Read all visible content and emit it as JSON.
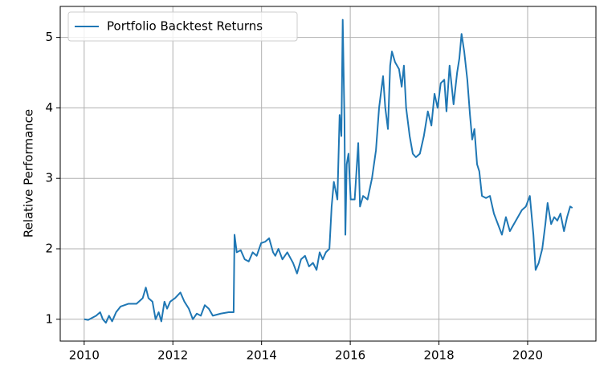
{
  "chart_data": {
    "type": "line",
    "y_label": "Relative Performance",
    "x": [
      2010.0,
      2010.09,
      2010.27,
      2010.36,
      2010.42,
      2010.49,
      2010.56,
      2010.63,
      2010.72,
      2010.82,
      2011.0,
      2011.18,
      2011.32,
      2011.39,
      2011.45,
      2011.54,
      2011.61,
      2011.68,
      2011.74,
      2011.81,
      2011.87,
      2011.94,
      2012.05,
      2012.17,
      2012.26,
      2012.36,
      2012.45,
      2012.54,
      2012.63,
      2012.72,
      2012.81,
      2012.9,
      2013.08,
      2013.26,
      2013.37,
      2013.39,
      2013.44,
      2013.53,
      2013.62,
      2013.71,
      2013.8,
      2013.89,
      2013.99,
      2014.08,
      2014.17,
      2014.26,
      2014.31,
      2014.38,
      2014.47,
      2014.58,
      2014.71,
      2014.8,
      2014.89,
      2014.98,
      2015.07,
      2015.16,
      2015.24,
      2015.31,
      2015.38,
      2015.45,
      2015.53,
      2015.58,
      2015.63,
      2015.71,
      2015.76,
      2015.8,
      2015.83,
      2015.87,
      2015.89,
      2015.92,
      2015.96,
      2016.01,
      2016.1,
      2016.18,
      2016.22,
      2016.29,
      2016.39,
      2016.49,
      2016.58,
      2016.65,
      2016.74,
      2016.79,
      2016.85,
      2016.9,
      2016.94,
      2017.01,
      2017.1,
      2017.16,
      2017.21,
      2017.26,
      2017.34,
      2017.41,
      2017.48,
      2017.57,
      2017.66,
      2017.75,
      2017.83,
      2017.9,
      2017.97,
      2018.04,
      2018.12,
      2018.17,
      2018.24,
      2018.33,
      2018.41,
      2018.46,
      2018.51,
      2018.57,
      2018.64,
      2018.7,
      2018.75,
      2018.8,
      2018.86,
      2018.91,
      2018.97,
      2019.06,
      2019.15,
      2019.24,
      2019.33,
      2019.42,
      2019.51,
      2019.6,
      2019.69,
      2019.78,
      2019.87,
      2019.96,
      2020.05,
      2020.13,
      2020.18,
      2020.25,
      2020.33,
      2020.4,
      2020.45,
      2020.53,
      2020.6,
      2020.67,
      2020.74,
      2020.82,
      2020.89,
      2020.96,
      2021.01
    ],
    "series": [
      {
        "name": "Portfolio Backtest Returns",
        "color": "#1f77b4",
        "values": [
          1.0,
          0.99,
          1.05,
          1.1,
          1.0,
          0.95,
          1.05,
          0.97,
          1.1,
          1.18,
          1.22,
          1.22,
          1.3,
          1.45,
          1.3,
          1.25,
          1.0,
          1.1,
          0.97,
          1.25,
          1.15,
          1.25,
          1.3,
          1.38,
          1.25,
          1.15,
          1.0,
          1.08,
          1.05,
          1.2,
          1.15,
          1.05,
          1.08,
          1.1,
          1.1,
          2.2,
          1.95,
          1.98,
          1.85,
          1.82,
          1.95,
          1.9,
          2.08,
          2.1,
          2.15,
          1.95,
          1.9,
          2.0,
          1.85,
          1.95,
          1.8,
          1.65,
          1.85,
          1.9,
          1.75,
          1.8,
          1.7,
          1.95,
          1.85,
          1.95,
          2.0,
          2.6,
          2.95,
          2.7,
          3.9,
          3.6,
          5.25,
          3.8,
          2.2,
          3.2,
          3.35,
          2.7,
          2.7,
          3.5,
          2.6,
          2.75,
          2.7,
          3.0,
          3.4,
          4.0,
          4.45,
          4.0,
          3.7,
          4.6,
          4.8,
          4.65,
          4.55,
          4.3,
          4.6,
          4.0,
          3.6,
          3.35,
          3.3,
          3.35,
          3.6,
          3.95,
          3.75,
          4.2,
          4.0,
          4.35,
          4.4,
          3.95,
          4.6,
          4.05,
          4.5,
          4.7,
          5.05,
          4.8,
          4.4,
          3.9,
          3.55,
          3.7,
          3.2,
          3.1,
          2.75,
          2.72,
          2.75,
          2.5,
          2.35,
          2.2,
          2.45,
          2.25,
          2.35,
          2.45,
          2.55,
          2.6,
          2.75,
          2.2,
          1.7,
          1.8,
          2.0,
          2.35,
          2.65,
          2.35,
          2.45,
          2.4,
          2.5,
          2.25,
          2.45,
          2.6,
          2.58
        ]
      }
    ],
    "xlim": [
      2009.46,
      2021.54
    ],
    "xticks": [
      2010,
      2012,
      2014,
      2016,
      2018,
      2020
    ],
    "ylim": [
      0.69,
      5.44
    ],
    "yticks": [
      1,
      2,
      3,
      4,
      5
    ],
    "grid": true,
    "legend": "upper-left"
  }
}
